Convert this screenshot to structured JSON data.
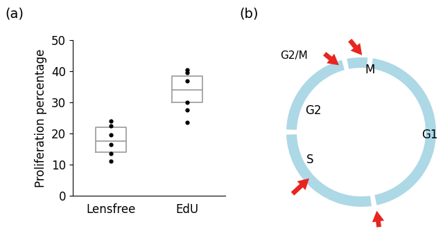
{
  "chart_data": {
    "type": "box",
    "title": "(a)",
    "y_label": "Proliferation percentage",
    "categories": [
      "Lensfree",
      "EdU"
    ],
    "points": [
      [
        24,
        22.5,
        19.5,
        16.5,
        13.5,
        11
      ],
      [
        40.5,
        39.5,
        37,
        30,
        27.5,
        23.5
      ]
    ],
    "q1": [
      14,
      30
    ],
    "median": [
      17.5,
      34
    ],
    "q3": [
      22,
      38.5
    ],
    "ylim": [
      0,
      50
    ],
    "yticks": [
      0,
      10,
      20,
      30,
      40,
      50
    ]
  },
  "diagram": {
    "label": "(b)",
    "phases": [
      "G1",
      "S",
      "G2",
      "M"
    ],
    "arrow_labels": [
      "G2/M"
    ]
  }
}
